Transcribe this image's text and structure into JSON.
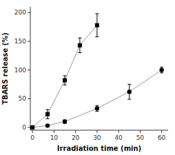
{
  "chart_data": {
    "type": "line",
    "xlabel": "Irradiation time (min)",
    "ylabel": "TBARS release (%)",
    "series": [
      {
        "x": [
          0,
          7,
          15,
          22,
          30
        ],
        "values": [
          0,
          23,
          82,
          143,
          178
        ],
        "errors": [
          0,
          8,
          8,
          13,
          20
        ],
        "marker": "square",
        "color": "#000000"
      },
      {
        "x": [
          0,
          7,
          15,
          30,
          45,
          60
        ],
        "values": [
          0,
          3,
          10,
          33,
          62,
          100
        ],
        "errors": [
          0,
          2,
          3,
          5,
          13,
          5
        ],
        "marker": "circle",
        "color": "#000000"
      }
    ],
    "xlim": [
      -1,
      63
    ],
    "ylim": [
      -5,
      210
    ],
    "xticks": [
      0,
      10,
      20,
      30,
      40,
      50,
      60
    ],
    "yticks": [
      0,
      50,
      100,
      150,
      200
    ],
    "grid": false
  }
}
